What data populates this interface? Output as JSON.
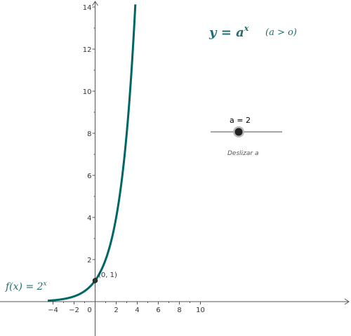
{
  "title_formula": {
    "lhs": "y = a",
    "exponent": "x",
    "condition": "(a > o)"
  },
  "function_label": {
    "lhs": "f(x)  =  2",
    "exponent": "x"
  },
  "slider": {
    "label": "a = 2",
    "caption": "Deslizar  a",
    "value": 2
  },
  "point": {
    "label": "(0, 1)",
    "x": 0,
    "y": 1
  },
  "colors": {
    "curve": "#006666",
    "text_accent": "#1f6f6f",
    "axis": "#555555",
    "slider_line": "#888888",
    "slider_knob": "#222222"
  },
  "chart_data": {
    "type": "line",
    "function": "2^x",
    "series": [
      {
        "name": "f(x) = 2^x",
        "x": [
          -4.5,
          -4,
          -3,
          -2,
          -1,
          0,
          1,
          2,
          3,
          3.5,
          3.8
        ],
        "y": [
          0.044,
          0.0625,
          0.125,
          0.25,
          0.5,
          1,
          2,
          4,
          8,
          11.31,
          13.93
        ]
      }
    ],
    "xlim": [
      -4.5,
      12
    ],
    "ylim": [
      -1.5,
      14.3
    ],
    "x_ticks": [
      "-4",
      "-2",
      "0",
      "2",
      "4",
      "6",
      "8",
      "10"
    ],
    "y_ticks": [
      "2",
      "4",
      "6",
      "8",
      "10",
      "12",
      "14"
    ],
    "grid": false
  }
}
